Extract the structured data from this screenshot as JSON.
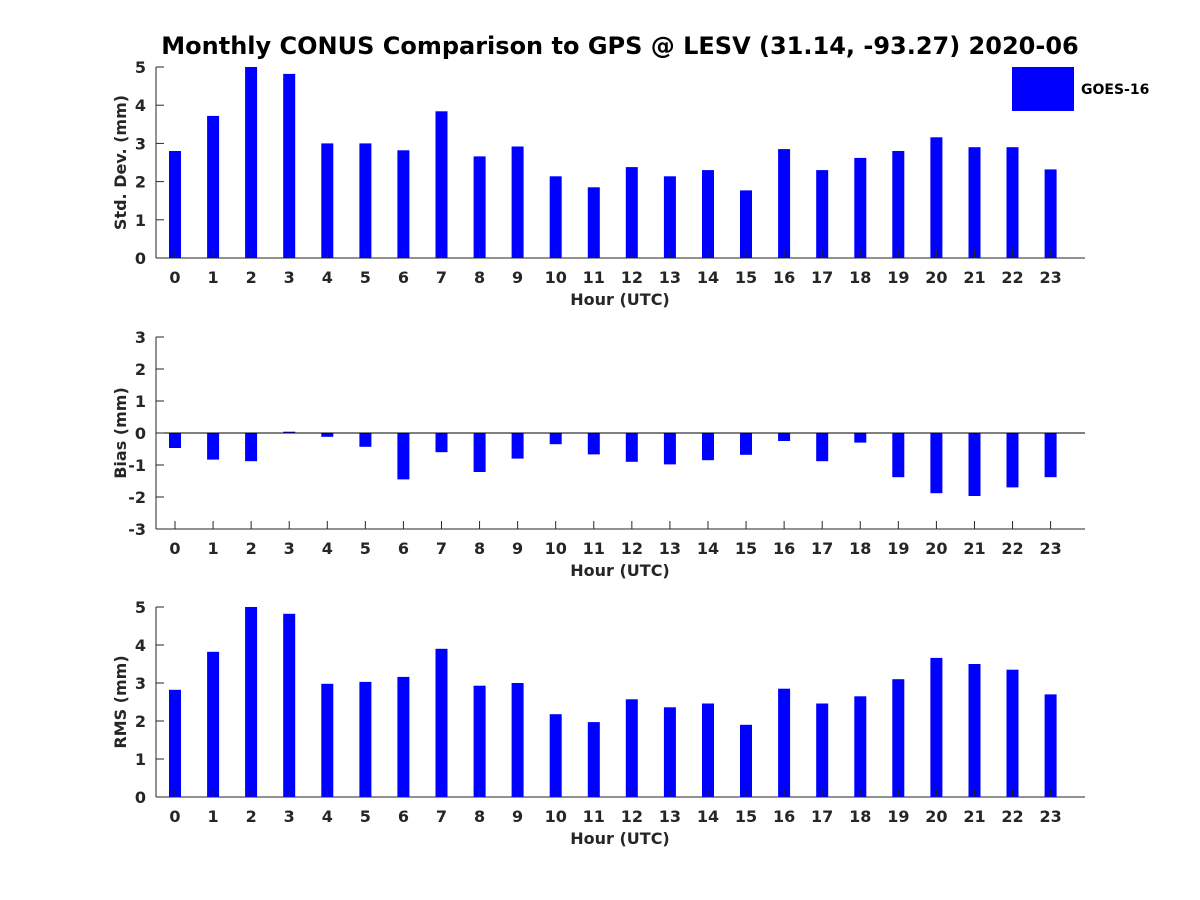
{
  "chart_data": [
    {
      "type": "bar",
      "title": "Monthly CONUS Comparison to GPS @ LESV (31.14, -93.27) 2020-06",
      "xlabel": "Hour (UTC)",
      "ylabel": "Std. Dev. (mm)",
      "ylim": [
        0,
        5
      ],
      "yticks": [
        0,
        1,
        2,
        3,
        4,
        5
      ],
      "categories": [
        "0",
        "1",
        "2",
        "3",
        "4",
        "5",
        "6",
        "7",
        "8",
        "9",
        "10",
        "11",
        "12",
        "13",
        "14",
        "15",
        "16",
        "17",
        "18",
        "19",
        "20",
        "21",
        "22",
        "23"
      ],
      "series": [
        {
          "name": "GOES-16",
          "color": "#0000ff",
          "values": [
            2.8,
            3.72,
            5.0,
            4.82,
            3.0,
            3.0,
            2.82,
            3.84,
            2.66,
            2.92,
            2.14,
            1.85,
            2.38,
            2.14,
            2.3,
            1.77,
            2.85,
            2.3,
            2.62,
            2.8,
            3.16,
            2.9,
            2.9,
            2.32
          ]
        }
      ]
    },
    {
      "type": "bar",
      "xlabel": "Hour (UTC)",
      "ylabel": "Bias (mm)",
      "ylim": [
        -3,
        3
      ],
      "yticks": [
        -3,
        -2,
        -1,
        0,
        1,
        2,
        3
      ],
      "categories": [
        "0",
        "1",
        "2",
        "3",
        "4",
        "5",
        "6",
        "7",
        "8",
        "9",
        "10",
        "11",
        "12",
        "13",
        "14",
        "15",
        "16",
        "17",
        "18",
        "19",
        "20",
        "21",
        "22",
        "23"
      ],
      "series": [
        {
          "name": "GOES-16",
          "color": "#0000ff",
          "values": [
            -0.47,
            -0.83,
            -0.88,
            0.04,
            -0.12,
            -0.43,
            -1.45,
            -0.6,
            -1.22,
            -0.8,
            -0.35,
            -0.67,
            -0.9,
            -0.98,
            -0.85,
            -0.68,
            -0.25,
            -0.88,
            -0.3,
            -1.38,
            -1.88,
            -1.97,
            -1.7,
            -1.38
          ]
        }
      ]
    },
    {
      "type": "bar",
      "xlabel": "Hour (UTC)",
      "ylabel": "RMS (mm)",
      "ylim": [
        0,
        5
      ],
      "yticks": [
        0,
        1,
        2,
        3,
        4,
        5
      ],
      "categories": [
        "0",
        "1",
        "2",
        "3",
        "4",
        "5",
        "6",
        "7",
        "8",
        "9",
        "10",
        "11",
        "12",
        "13",
        "14",
        "15",
        "16",
        "17",
        "18",
        "19",
        "20",
        "21",
        "22",
        "23"
      ],
      "series": [
        {
          "name": "GOES-16",
          "color": "#0000ff",
          "values": [
            2.82,
            3.82,
            5.0,
            4.82,
            2.98,
            3.03,
            3.16,
            3.9,
            2.93,
            3.0,
            2.18,
            1.97,
            2.57,
            2.36,
            2.46,
            1.9,
            2.85,
            2.46,
            2.65,
            3.1,
            3.66,
            3.5,
            3.35,
            2.7
          ]
        }
      ]
    }
  ],
  "legend": {
    "label": "GOES-16",
    "color": "#0000ff"
  }
}
